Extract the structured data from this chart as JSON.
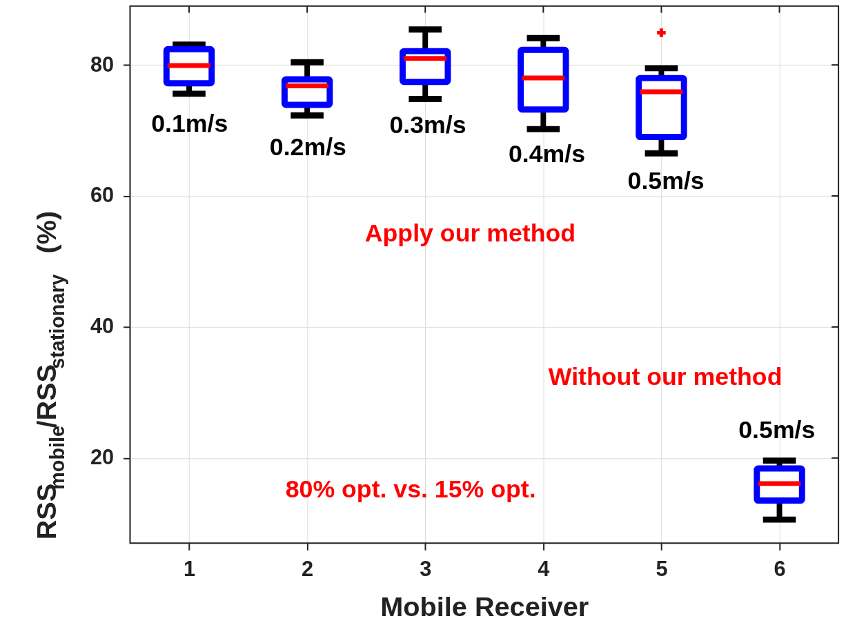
{
  "chart_data": {
    "type": "box",
    "xlabel": "Mobile Receiver",
    "ylabel": "RSS$_{mobile}$/RSS$_{stationary}$ (%)",
    "categories": [
      "1",
      "2",
      "3",
      "4",
      "5",
      "6"
    ],
    "boxes": [
      {
        "low": 75.6,
        "q1": 77.2,
        "median": 79.9,
        "q3": 82.4,
        "high": 83.1
      },
      {
        "low": 72.3,
        "q1": 73.9,
        "median": 76.8,
        "q3": 77.8,
        "high": 80.4
      },
      {
        "low": 74.8,
        "q1": 77.4,
        "median": 81.0,
        "q3": 82.1,
        "high": 85.4
      },
      {
        "low": 70.2,
        "q1": 73.2,
        "median": 78.0,
        "q3": 82.3,
        "high": 84.1
      },
      {
        "low": 66.5,
        "q1": 69.0,
        "median": 75.9,
        "q3": 78.0,
        "high": 79.5,
        "outliers": [
          84.9
        ]
      },
      {
        "low": 10.6,
        "q1": 13.5,
        "median": 16.1,
        "q3": 18.4,
        "high": 19.6
      }
    ],
    "ylim": [
      7,
      89
    ],
    "yticks": [
      20,
      40,
      60,
      80
    ],
    "grid": true,
    "annotations": [
      "0.1m/s",
      "0.2m/s",
      "0.3m/s",
      "0.4m/s",
      "0.5m/s",
      "0.5m/s",
      "Apply our method",
      "Without our method",
      "80% opt. vs. 15% opt."
    ]
  }
}
